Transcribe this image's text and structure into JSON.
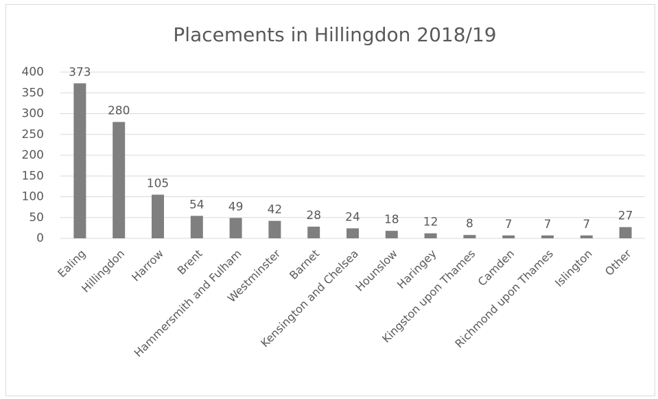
{
  "chart_data": {
    "type": "bar",
    "title": "Placements in Hillingdon 2018/19",
    "categories": [
      "Ealing",
      "Hillingdon",
      "Harrow",
      "Brent",
      "Hammersmith and Fulham",
      "Westminster",
      "Barnet",
      "Kensington and Chelsea",
      "Hounslow",
      "Haringey",
      "Kingston upon Thames",
      "Camden",
      "Richmond upon Thames",
      "Islington",
      "Other"
    ],
    "values": [
      373,
      280,
      105,
      54,
      49,
      42,
      28,
      24,
      18,
      12,
      8,
      7,
      7,
      7,
      27
    ],
    "color": "#7f7f7f",
    "ylim": [
      0,
      400
    ],
    "yticks": [
      0,
      50,
      100,
      150,
      200,
      250,
      300,
      350,
      400
    ],
    "grid": true
  }
}
